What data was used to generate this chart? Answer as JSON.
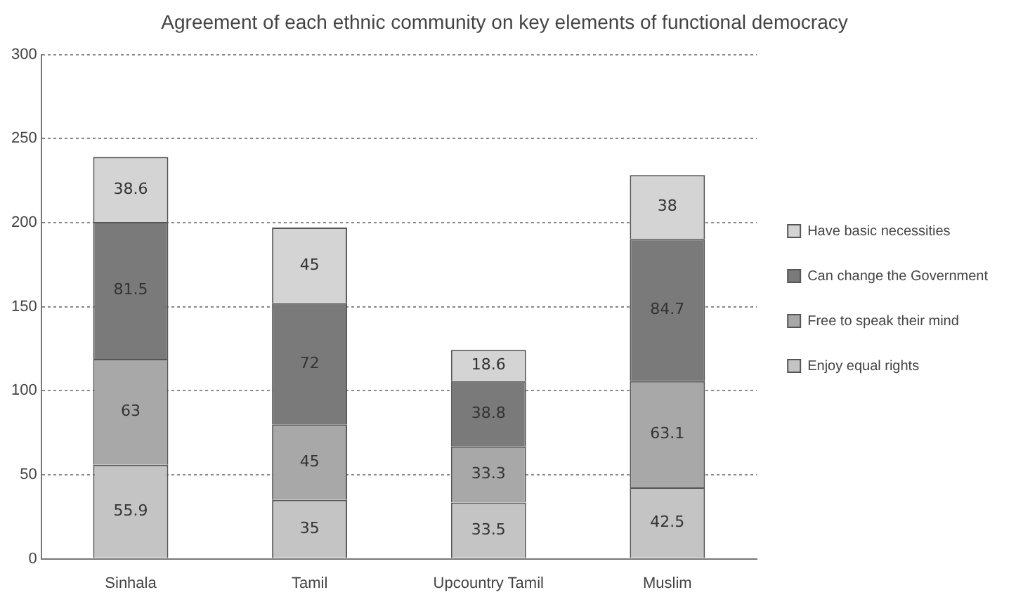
{
  "chart_data": {
    "type": "bar",
    "title": "Agreement of each ethnic community on key elements of functional democracy",
    "categories": [
      "Sinhala",
      "Tamil",
      "Upcountry Tamil",
      "Muslim"
    ],
    "stacked": true,
    "series": [
      {
        "name": "Enjoy equal rights",
        "color": "#c4c4c4",
        "values": [
          55.9,
          35,
          33.5,
          42.5
        ]
      },
      {
        "name": "Free to speak their mind",
        "color": "#a8a8a8",
        "values": [
          63,
          45,
          33.3,
          63.1
        ]
      },
      {
        "name": "Can change the Government",
        "color": "#7a7a7a",
        "values": [
          81.5,
          72,
          38.8,
          84.7
        ]
      },
      {
        "name": "Have basic necessities",
        "color": "#d4d4d4",
        "values": [
          38.6,
          45,
          18.6,
          38
        ]
      }
    ],
    "ylim": [
      0,
      300
    ],
    "yticks": [
      0,
      50,
      100,
      150,
      200,
      250,
      300
    ],
    "grid": "y",
    "legend": "right",
    "data_labels": true
  }
}
